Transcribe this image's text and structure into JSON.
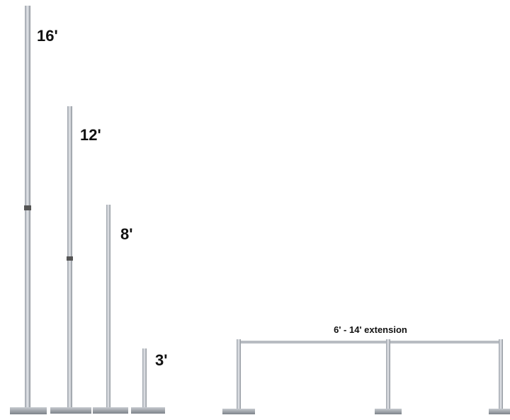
{
  "labels": {
    "pole_16": "16'",
    "pole_12": "12'",
    "pole_8": "8'",
    "pole_3": "3'",
    "extension": "6' - 14' extension"
  }
}
